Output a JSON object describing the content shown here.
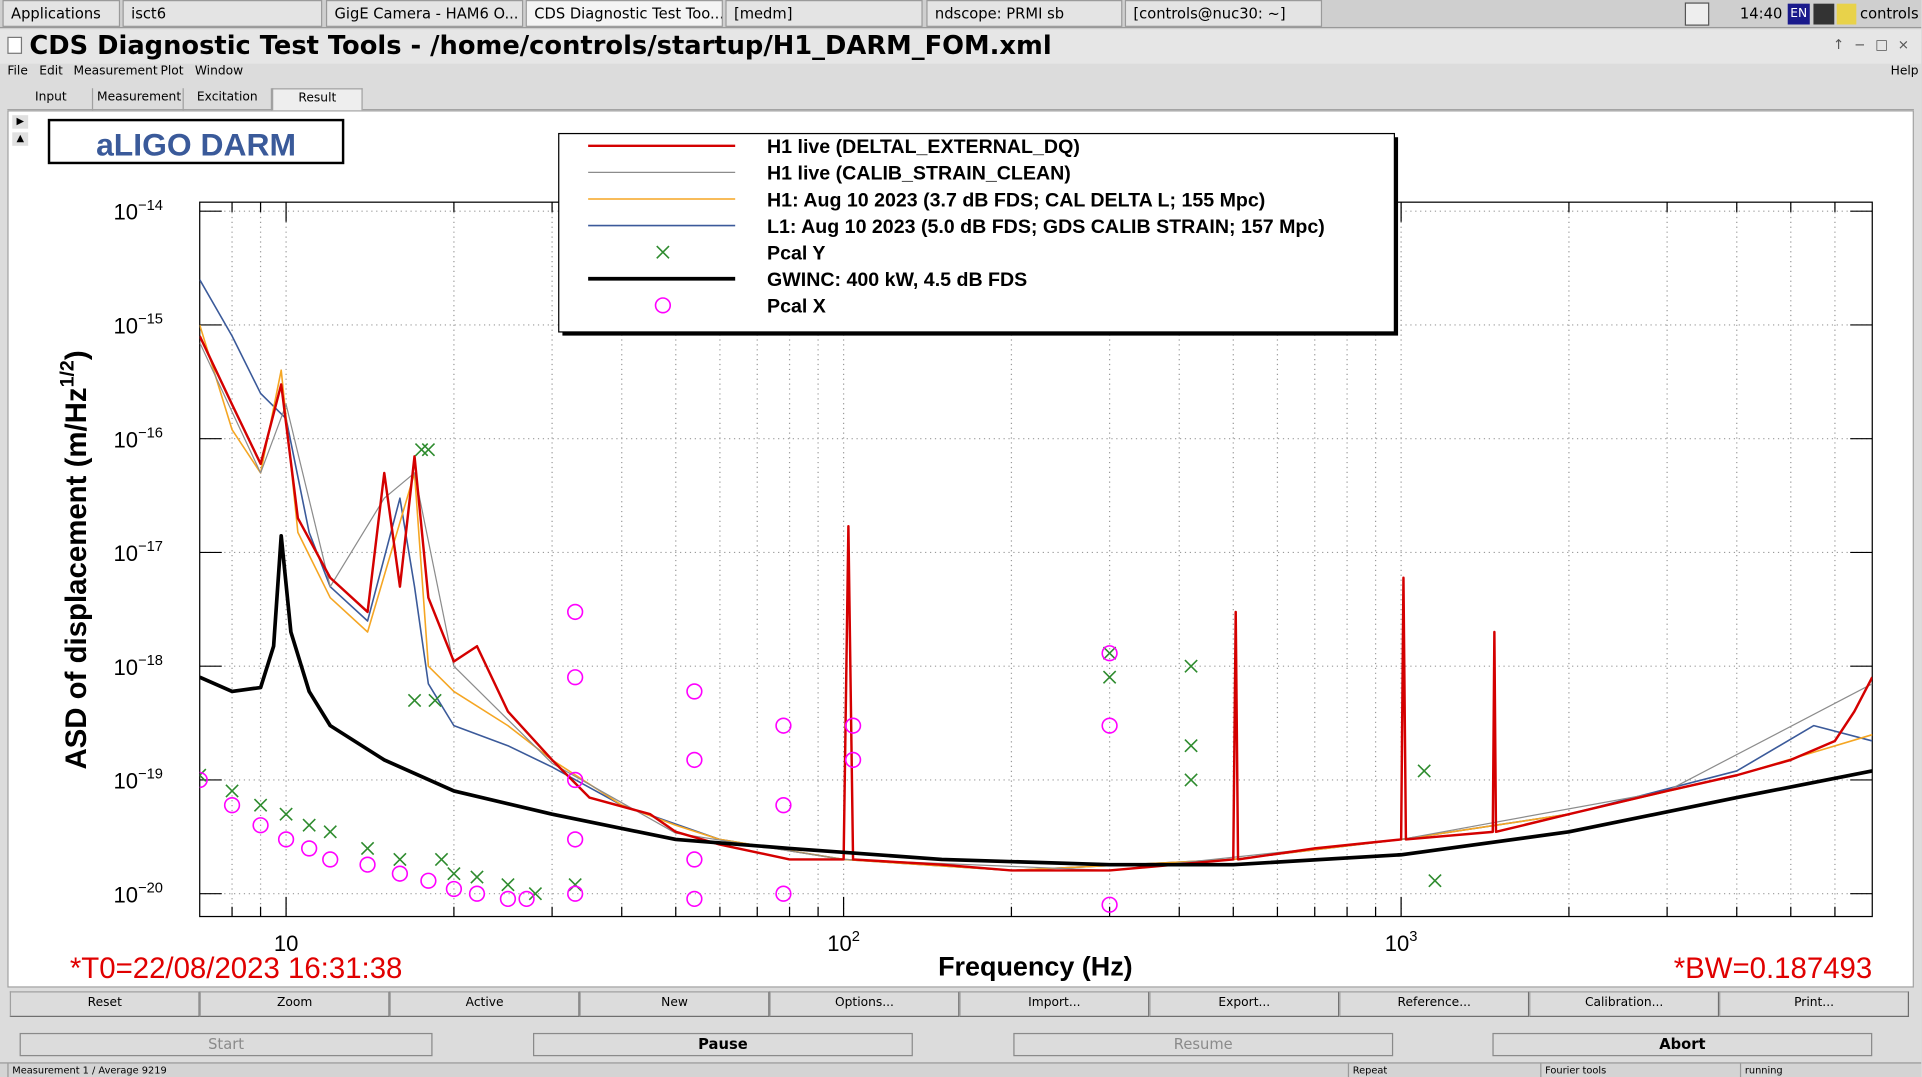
{
  "taskbar": {
    "items": [
      "Applications",
      "isct6",
      "GigE Camera - HAM6 O...",
      "CDS Diagnostic Test Too...",
      "[medm]",
      "ndscope: PRMI sb",
      "[controls@nuc30: ~]"
    ],
    "keyboard": "EN",
    "clock": "14:40",
    "user": "controls"
  },
  "window": {
    "title": "CDS Diagnostic Test Tools - /home/controls/startup/H1_DARM_FOM.xml"
  },
  "menu": {
    "left": [
      "File",
      "Edit",
      "Measurement",
      "Plot",
      "Window"
    ],
    "right": "Help"
  },
  "tabs": [
    "Input",
    "Measurement",
    "Excitation",
    "Result"
  ],
  "chart_data": {
    "type": "line",
    "title": "aLIGO DARM",
    "xlabel": "Frequency (Hz)",
    "ylabel": {
      "text": "ASD of displacement (m/Hz",
      "sup": "1/2",
      "end": ")"
    },
    "annotations": [
      "*T0=22/08/2023 16:31:38",
      "*BW=0.187493"
    ],
    "xscale": "log",
    "yscale": "log",
    "xlim": [
      7,
      7000
    ],
    "ylim": [
      6.3e-21,
      1.2e-14
    ],
    "xticks": [
      10,
      {
        "value": 100,
        "label": "10",
        "exponent": "2"
      },
      {
        "value": 1000,
        "label": "10",
        "exponent": "3"
      }
    ],
    "xminorticks": [
      8,
      9,
      20,
      30,
      40,
      50,
      60,
      70,
      80,
      90,
      200,
      300,
      400,
      500,
      600,
      700,
      800,
      900,
      2000,
      3000,
      4000,
      5000,
      6000
    ],
    "yticks": [
      {
        "value": 1e-20,
        "label": "10",
        "exponent": "−20"
      },
      {
        "value": 1e-19,
        "label": "10",
        "exponent": "−19"
      },
      {
        "value": 1e-18,
        "label": "10",
        "exponent": "−18"
      },
      {
        "value": 1e-17,
        "label": "10",
        "exponent": "−17"
      },
      {
        "value": 1e-16,
        "label": "10",
        "exponent": "−16"
      },
      {
        "value": 1e-15,
        "label": "10",
        "exponent": "−15"
      },
      {
        "value": 1e-14,
        "label": "10",
        "exponent": "−14"
      }
    ],
    "grid": true,
    "legend": "top",
    "series": [
      {
        "name": "H1 live (DELTAL_EXTERNAL_DQ)",
        "color": "#d40000",
        "x": [
          7,
          8,
          9,
          9.8,
          10.5,
          12,
          14,
          15,
          16,
          17,
          18,
          20,
          22,
          25,
          30,
          35,
          45,
          50,
          60,
          80,
          100,
          102,
          104,
          150,
          200,
          300,
          500,
          505,
          510,
          700,
          1000,
          1010,
          1020,
          1460,
          1470,
          1480,
          2000,
          3000,
          4000,
          5000,
          6000,
          6500,
          7000
        ],
        "values": [
          8e-16,
          2e-16,
          6e-17,
          3e-16,
          2e-17,
          6e-18,
          3e-18,
          5e-17,
          5e-18,
          7e-17,
          4e-18,
          1.1e-18,
          1.5e-18,
          4e-19,
          1.5e-19,
          7e-20,
          5e-20,
          3.5e-20,
          2.7e-20,
          2e-20,
          2e-20,
          1.7e-17,
          2e-20,
          1.8e-20,
          1.6e-20,
          1.6e-20,
          2e-20,
          3e-18,
          2e-20,
          2.5e-20,
          3e-20,
          6e-18,
          3e-20,
          3.5e-20,
          2e-18,
          3.5e-20,
          5e-20,
          8e-20,
          1.1e-19,
          1.5e-19,
          2.2e-19,
          4e-19,
          8e-19
        ]
      },
      {
        "name": "H1 live (CALIB_STRAIN_CLEAN)",
        "color": "#8c8c8c",
        "x": [
          7,
          9,
          10,
          12,
          15,
          17,
          20,
          30,
          50,
          100,
          300,
          1000,
          3000,
          7000
        ],
        "values": [
          7e-16,
          5e-17,
          2e-16,
          5e-18,
          3e-17,
          5e-17,
          1e-18,
          1.4e-19,
          3.4e-20,
          2e-20,
          1.6e-20,
          3e-20,
          8e-20,
          7e-19
        ]
      },
      {
        "name": "H1: Aug 10 2023 (3.7 dB FDS; CAL DELTA L; 155 Mpc)",
        "color": "#f5a623",
        "x": [
          7,
          8,
          9,
          9.8,
          10.5,
          12,
          14,
          17,
          18,
          20,
          25,
          30,
          40,
          50,
          60,
          100,
          200,
          500,
          1000,
          2000,
          4000,
          7000
        ],
        "values": [
          1e-15,
          1.2e-16,
          5e-17,
          4e-16,
          1.5e-17,
          4e-18,
          2e-18,
          5e-17,
          1e-18,
          6e-19,
          3e-19,
          1.5e-19,
          6e-20,
          4e-20,
          3e-20,
          2e-20,
          1.6e-20,
          2e-20,
          3e-20,
          5e-20,
          1.1e-19,
          2.5e-19
        ]
      },
      {
        "name": "L1: Aug 10 2023 (5.0 dB FDS; GDS CALIB STRAIN; 157 Mpc)",
        "color": "#3b5a9a",
        "x": [
          7,
          8,
          9,
          10,
          11,
          12,
          14,
          16,
          17,
          18,
          20,
          25,
          30,
          40,
          60,
          100,
          200,
          500,
          1000,
          2000,
          4000,
          5500,
          7000
        ],
        "values": [
          2.5e-15,
          8e-16,
          2.5e-16,
          1.5e-16,
          1.5e-17,
          5e-18,
          2.5e-18,
          3e-17,
          5e-18,
          7e-19,
          3e-19,
          2e-19,
          1.3e-19,
          6e-20,
          3e-20,
          2e-20,
          1.6e-20,
          2e-20,
          3e-20,
          5e-20,
          1.2e-19,
          3e-19,
          2.2e-19
        ]
      },
      {
        "name": "Pcal Y",
        "color": "#2e8b2e",
        "marker": "x",
        "x": [
          7,
          8,
          9,
          10,
          11,
          12,
          14,
          16,
          17,
          17.5,
          18,
          18.5,
          19,
          20,
          22,
          25,
          28,
          33,
          300,
          300,
          420,
          420,
          420,
          1100,
          1150
        ],
        "values": [
          1.1e-19,
          8e-20,
          6e-20,
          5e-20,
          4e-20,
          3.5e-20,
          2.5e-20,
          2e-20,
          5e-19,
          8e-17,
          8e-17,
          5e-19,
          2e-20,
          1.5e-20,
          1.4e-20,
          1.2e-20,
          1e-20,
          1.2e-20,
          8e-19,
          1.3e-18,
          1e-18,
          2e-19,
          1e-19,
          1.2e-19,
          1.3e-20
        ]
      },
      {
        "name": "GWINC: 400 kW, 4.5 dB FDS",
        "color": "#000000",
        "x": [
          7,
          8,
          9,
          9.5,
          9.8,
          10.2,
          11,
          12,
          15,
          20,
          30,
          50,
          80,
          150,
          300,
          500,
          1000,
          2000,
          4000,
          7000
        ],
        "values": [
          8e-19,
          6e-19,
          6.5e-19,
          1.5e-18,
          1.4e-17,
          2e-18,
          6e-19,
          3e-19,
          1.5e-19,
          8e-20,
          5e-20,
          3e-20,
          2.5e-20,
          2e-20,
          1.8e-20,
          1.8e-20,
          2.2e-20,
          3.5e-20,
          7e-20,
          1.2e-19
        ]
      },
      {
        "name": "Pcal X",
        "color": "#ff00ff",
        "marker": "o",
        "x": [
          7,
          8,
          9,
          10,
          11,
          12,
          14,
          16,
          18,
          20,
          22,
          25,
          27,
          33,
          33,
          33,
          33,
          33,
          54,
          54,
          54,
          54,
          78,
          78,
          78,
          104,
          104,
          300,
          300,
          300
        ],
        "values": [
          1e-19,
          6e-20,
          4e-20,
          3e-20,
          2.5e-20,
          2e-20,
          1.8e-20,
          1.5e-20,
          1.3e-20,
          1.1e-20,
          1e-20,
          9e-21,
          9e-21,
          3e-18,
          8e-19,
          1e-19,
          3e-20,
          1e-20,
          6e-19,
          1.5e-19,
          2e-20,
          9e-21,
          3e-19,
          6e-20,
          1e-20,
          3e-19,
          1.5e-19,
          1.3e-18,
          3e-19,
          8e-21
        ]
      }
    ]
  },
  "buttons": [
    "Reset",
    "Zoom",
    "Active",
    "New",
    "Options...",
    "Import...",
    "Export...",
    "Reference...",
    "Calibration...",
    "Print..."
  ],
  "controls": [
    "Start",
    "Pause",
    "Resume",
    "Abort"
  ],
  "status": [
    "Measurement 1 / Average 9219",
    "Repeat",
    "Fourier tools",
    "running"
  ]
}
